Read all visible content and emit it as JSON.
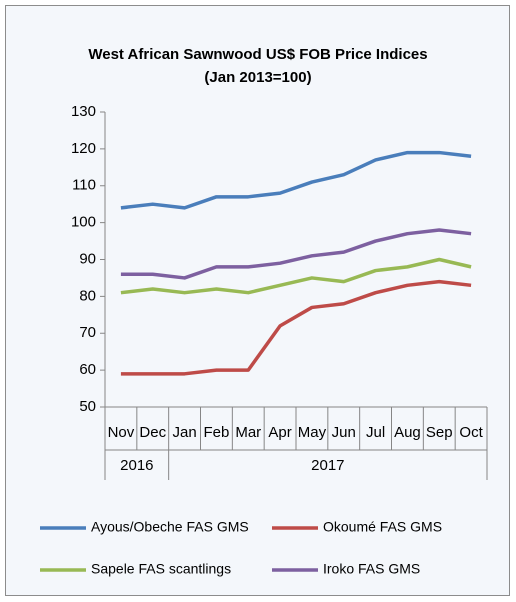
{
  "chart_data": {
    "type": "line",
    "title": "West African Sawnwood US$ FOB Price Indices",
    "subtitle": "(Jan 2013=100)",
    "categories": [
      "Nov",
      "Dec",
      "Jan",
      "Feb",
      "Mar",
      "Apr",
      "May",
      "Jun",
      "Jul",
      "Aug",
      "Sep",
      "Oct"
    ],
    "category_groups": [
      {
        "label": "2016",
        "count": 2
      },
      {
        "label": "2017",
        "count": 10
      }
    ],
    "series": [
      {
        "name": "Ayous/Obeche FAS GMS",
        "color": "#4a7ebb",
        "values": [
          104,
          105,
          104,
          107,
          107,
          108,
          111,
          113,
          117,
          119,
          119,
          118
        ]
      },
      {
        "name": "Okoumé  FAS GMS",
        "color": "#be4b48",
        "values": [
          59,
          59,
          59,
          60,
          60,
          72,
          77,
          78,
          81,
          83,
          84,
          83
        ]
      },
      {
        "name": "Sapele FAS scantlings",
        "color": "#98b954",
        "values": [
          81,
          82,
          81,
          82,
          81,
          83,
          85,
          84,
          87,
          88,
          90,
          88
        ]
      },
      {
        "name": "Iroko FAS GMS",
        "color": "#7d60a0",
        "values": [
          86,
          86,
          85,
          88,
          88,
          89,
          91,
          92,
          95,
          97,
          98,
          97
        ]
      }
    ],
    "ylim": [
      50,
      130
    ],
    "yticks": [
      50,
      60,
      70,
      80,
      90,
      100,
      110,
      120,
      130
    ],
    "grid": false,
    "legend": "bottom"
  }
}
